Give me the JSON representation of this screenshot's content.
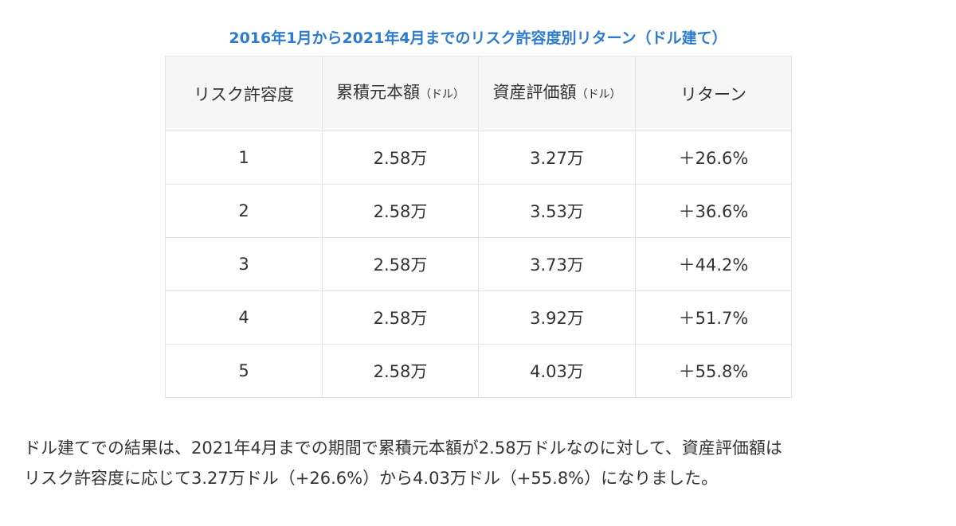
{
  "caption": "2016年1月から2021年4月までのリスク許容度別リターン（ドル建て）",
  "table": {
    "headers": {
      "risk": "リスク許容度",
      "principal_main": "累積元本額",
      "principal_unit": "（ドル）",
      "assets_main": "資産評価額",
      "assets_unit": "（ドル）",
      "return": "リターン"
    },
    "rows": [
      {
        "risk": "1",
        "principal": "2.58万",
        "assets": "3.27万",
        "return": "＋26.6%"
      },
      {
        "risk": "2",
        "principal": "2.58万",
        "assets": "3.53万",
        "return": "＋36.6%"
      },
      {
        "risk": "3",
        "principal": "2.58万",
        "assets": "3.73万",
        "return": "＋44.2%"
      },
      {
        "risk": "4",
        "principal": "2.58万",
        "assets": "3.92万",
        "return": "＋51.7%"
      },
      {
        "risk": "5",
        "principal": "2.58万",
        "assets": "4.03万",
        "return": "＋55.8%"
      }
    ]
  },
  "summary": {
    "line1": "ドル建てでの結果は、2021年4月までの期間で累積元本額が2.58万ドルなのに対して、資産評価額は",
    "line2": "リスク許容度に応じて3.27万ドル（+26.6%）から4.03万ドル（+55.8%）になりました。"
  },
  "colors": {
    "caption": "#2d7bd1",
    "header_bg": "#f6f6f6",
    "border": "#e4e4e4",
    "text": "#333333"
  }
}
